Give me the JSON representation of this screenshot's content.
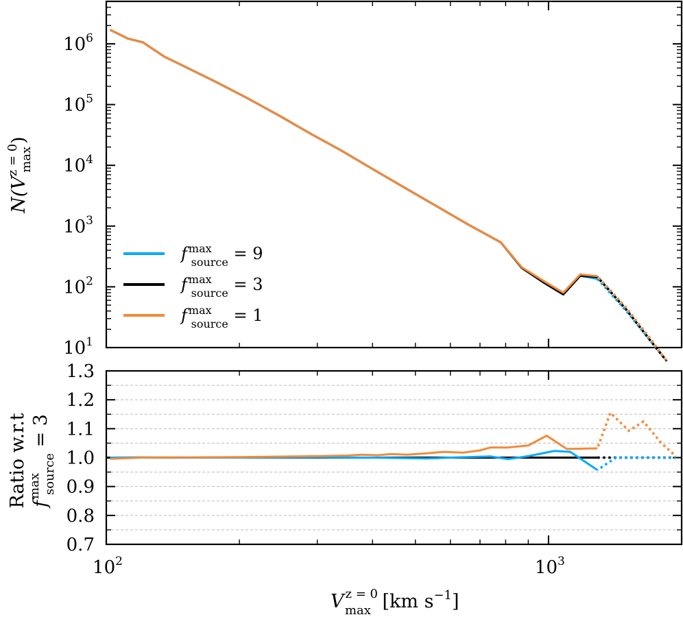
{
  "chart_data": [
    {
      "type": "line",
      "panel": "top",
      "yscale": "log",
      "xscale": "log",
      "xlim": [
        100,
        2000
      ],
      "ylim": [
        10,
        5000000
      ],
      "ylabel": {
        "main": "N(V",
        "sup": "z = 0",
        "sub": "max",
        "end": ")"
      },
      "yticks": [
        {
          "value": 10,
          "base": "10",
          "exp": "1"
        },
        {
          "value": 100,
          "base": "10",
          "exp": "2"
        },
        {
          "value": 1000,
          "base": "10",
          "exp": "3"
        },
        {
          "value": 10000,
          "base": "10",
          "exp": "4"
        },
        {
          "value": 100000,
          "base": "10",
          "exp": "5"
        },
        {
          "value": 1000000,
          "base": "10",
          "exp": "6"
        }
      ],
      "legend": {
        "position": "lower-left",
        "entries": [
          {
            "prefix": "f",
            "sup": "max",
            "sub": "source",
            "suffix": " = 9",
            "color": "#00aaff"
          },
          {
            "prefix": "f",
            "sup": "max",
            "sub": "source",
            "suffix": " = 3",
            "color": "#000000"
          },
          {
            "prefix": "f",
            "sup": "max",
            "sub": "source",
            "suffix": " = 1",
            "color": "#f28a3a"
          }
        ]
      },
      "series": [
        {
          "name": "f_source^max = 9",
          "color": "#00aaff",
          "solid": [
            [
              102,
              1700000
            ],
            [
              112,
              1220000
            ],
            [
              121,
              1060000
            ],
            [
              135,
              620000
            ],
            [
              155,
              380000
            ],
            [
              180,
              222000
            ],
            [
              210,
              124000
            ],
            [
              245,
              67000
            ],
            [
              290,
              33000
            ],
            [
              340,
              17500
            ],
            [
              400,
              8700
            ],
            [
              470,
              4400
            ],
            [
              560,
              2100
            ],
            [
              660,
              1050
            ],
            [
              780,
              540
            ],
            [
              870,
              205
            ],
            [
              980,
              115
            ],
            [
              1080,
              75
            ],
            [
              1180,
              152
            ],
            [
              1290,
              135
            ]
          ],
          "dotted": [
            [
              1290,
              135
            ],
            [
              1500,
              40
            ],
            [
              1700,
              13
            ],
            [
              1850,
              6
            ]
          ]
        },
        {
          "name": "f_source^max = 3",
          "color": "#000000",
          "solid": [
            [
              102,
              1700000
            ],
            [
              112,
              1220000
            ],
            [
              121,
              1060000
            ],
            [
              135,
              620000
            ],
            [
              155,
              380000
            ],
            [
              180,
              222000
            ],
            [
              210,
              124000
            ],
            [
              245,
              67000
            ],
            [
              290,
              33000
            ],
            [
              340,
              17500
            ],
            [
              400,
              8700
            ],
            [
              470,
              4400
            ],
            [
              560,
              2100
            ],
            [
              660,
              1050
            ],
            [
              780,
              540
            ],
            [
              870,
              205
            ],
            [
              980,
              115
            ],
            [
              1080,
              75
            ],
            [
              1180,
              152
            ],
            [
              1290,
              145
            ]
          ],
          "dotted": [
            [
              1290,
              145
            ],
            [
              1500,
              42
            ],
            [
              1700,
              13
            ],
            [
              1850,
              6
            ]
          ]
        },
        {
          "name": "f_source^max = 1",
          "color": "#f28a3a",
          "solid": [
            [
              102,
              1700000
            ],
            [
              112,
              1220000
            ],
            [
              121,
              1060000
            ],
            [
              135,
              620000
            ],
            [
              155,
              380000
            ],
            [
              180,
              222000
            ],
            [
              210,
              124000
            ],
            [
              245,
              67000
            ],
            [
              290,
              33000
            ],
            [
              340,
              17500
            ],
            [
              400,
              8700
            ],
            [
              470,
              4400
            ],
            [
              560,
              2100
            ],
            [
              660,
              1050
            ],
            [
              780,
              540
            ],
            [
              870,
              210
            ],
            [
              980,
              122
            ],
            [
              1080,
              80
            ],
            [
              1180,
              160
            ],
            [
              1290,
              150
            ]
          ],
          "dotted": [
            [
              1290,
              150
            ],
            [
              1500,
              45
            ],
            [
              1700,
              14
            ],
            [
              1850,
              6
            ]
          ]
        }
      ]
    },
    {
      "type": "line",
      "panel": "bottom",
      "xscale": "log",
      "xlim": [
        100,
        2000
      ],
      "ylim": [
        0.7,
        1.3
      ],
      "grid": "horizontal dashed",
      "ylabel": {
        "line1": "Ratio w.r.t",
        "prefix": "f",
        "sup": "max",
        "sub": "source",
        "suffix": " = 3"
      },
      "xlabel": {
        "main": "V",
        "sup": "z = 0",
        "sub": "max",
        "end": " [km s",
        "unit_sup": "−1",
        "close": "]"
      },
      "xticks": [
        {
          "value": 100,
          "base": "10",
          "exp": "2"
        },
        {
          "value": 1000,
          "base": "10",
          "exp": "3"
        }
      ],
      "yticks": [
        "0.7",
        "0.8",
        "0.9",
        "1.0",
        "1.1",
        "1.2",
        "1.3"
      ],
      "series": [
        {
          "name": "f_source^max = 3",
          "color": "#000000",
          "solid": [
            [
              100,
              1.0
            ],
            [
              1290,
              1.0
            ]
          ],
          "dotted": [
            [
              1290,
              1.0
            ],
            [
              1940,
              1.0
            ]
          ]
        },
        {
          "name": "f_source^max = 9",
          "color": "#00aaff",
          "solid": [
            [
              102,
              1.0
            ],
            [
              120,
              1.001
            ],
            [
              150,
              1.0
            ],
            [
              200,
              1.0
            ],
            [
              300,
              1.001
            ],
            [
              400,
              1.0
            ],
            [
              530,
              0.997
            ],
            [
              600,
              1.0
            ],
            [
              740,
              1.004
            ],
            [
              810,
              0.995
            ],
            [
              900,
              1.005
            ],
            [
              1030,
              1.023
            ],
            [
              1120,
              1.02
            ],
            [
              1290,
              0.957
            ]
          ],
          "dotted": [
            [
              1290,
              0.957
            ],
            [
              1420,
              1.0
            ],
            [
              1600,
              1.0
            ],
            [
              1800,
              1.0
            ],
            [
              1940,
              1.0
            ]
          ]
        },
        {
          "name": "f_source^max = 1",
          "color": "#f28a3a",
          "solid": [
            [
              102,
              0.996
            ],
            [
              120,
              1.0
            ],
            [
              200,
              1.002
            ],
            [
              300,
              1.005
            ],
            [
              350,
              1.007
            ],
            [
              380,
              1.01
            ],
            [
              410,
              1.008
            ],
            [
              440,
              1.012
            ],
            [
              480,
              1.01
            ],
            [
              530,
              1.015
            ],
            [
              580,
              1.02
            ],
            [
              640,
              1.017
            ],
            [
              700,
              1.025
            ],
            [
              740,
              1.035
            ],
            [
              810,
              1.035
            ],
            [
              900,
              1.042
            ],
            [
              990,
              1.076
            ],
            [
              1100,
              1.03
            ],
            [
              1290,
              1.032
            ]
          ],
          "dotted": [
            [
              1290,
              1.032
            ],
            [
              1380,
              1.155
            ],
            [
              1520,
              1.093
            ],
            [
              1640,
              1.125
            ],
            [
              1800,
              1.05
            ],
            [
              1940,
              1.005
            ]
          ]
        }
      ]
    }
  ]
}
